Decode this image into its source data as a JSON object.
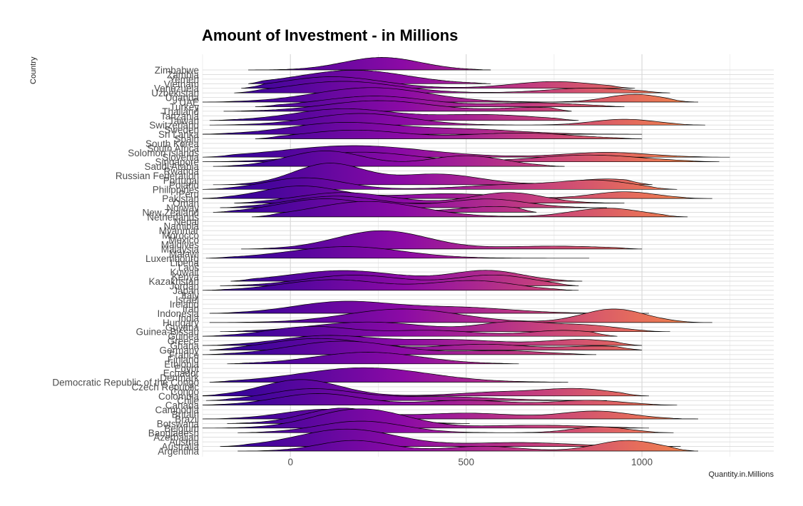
{
  "chart_data": {
    "type": "ridgeline",
    "title": "Amount of Investment - in Millions",
    "xlabel": "Quantity.in.Millions",
    "ylabel": "Country",
    "xlim": [
      -250,
      1375
    ],
    "x_ticks": [
      0,
      500,
      1000
    ],
    "grid": true,
    "gradient_colors": [
      "#3a049a",
      "#8b0aa5",
      "#c43e7f",
      "#e76f5a",
      "#fca636"
    ],
    "categories": [
      "Argentina",
      "Australia",
      "Austria",
      "Azerbaijan",
      "Bangladesh",
      "Belgium",
      "Botswana",
      "Brazil",
      "Britain",
      "Cambodia",
      "Canada",
      "Chile",
      "Colombia",
      "Congo",
      "Czech Republic",
      "Democratic Republic of the Congo",
      "Denmark",
      "Ecuador",
      "Egypt",
      "Ethiopia",
      "Finland",
      "France",
      "Germany",
      "Ghana",
      "Greece",
      "Guinea",
      "Guinea-Bissau",
      "Guyana",
      "Hungary",
      "India",
      "Indonesia",
      "Iran",
      "Ireland",
      "Israel",
      "Italy",
      "Japan",
      "Jordan",
      "Kazakhstan",
      "Kenya",
      "Kuwait",
      "Laos",
      "Liberia",
      "Luxembourg",
      "Malawi",
      "Malaysia",
      "Maldives",
      "Mexico",
      "Morocco",
      "Myanmar",
      "Namibia",
      "Nepal",
      "Netherlands",
      "New Zealand",
      "Norway",
      "Oman",
      "Pakistan",
      "Peru",
      "Philippines",
      "Poland",
      "Portugal",
      "Russian Federation",
      "Rwanda",
      "Saudi Arabia",
      "Singapore",
      "Slovenia",
      "Solomon Islands",
      "South Africa",
      "South Korea",
      "Spain",
      "Sri Lanka",
      "Sweden",
      "Switzerland",
      "Taiwan",
      "Tanzania",
      "Thailand",
      "Turkey",
      "UAE",
      "Uganda",
      "Uzbekistan",
      "Venezuela",
      "Vietnam",
      "Yemen",
      "Zambia",
      "Zimbabwe"
    ],
    "series": [
      {
        "name": "Argentina",
        "range": [
          -150,
          1160
        ],
        "peaks": [
          [
            180,
            0.55,
            100
          ],
          [
            550,
            0.25,
            100
          ],
          [
            960,
            0.55,
            90
          ]
        ]
      },
      {
        "name": "Australia",
        "range": [
          -200,
          1110
        ],
        "peaks": [
          [
            160,
            0.9,
            140
          ],
          [
            650,
            0.2,
            150
          ]
        ]
      },
      {
        "name": "Bangladesh",
        "range": [
          -150,
          1090
        ],
        "peaks": [
          [
            200,
            0.6,
            120
          ],
          [
            880,
            0.3,
            80
          ]
        ]
      },
      {
        "name": "Belgium",
        "range": [
          -250,
          1020
        ],
        "peaks": [
          [
            200,
            1.0,
            130
          ],
          [
            700,
            0.15,
            150
          ]
        ]
      },
      {
        "name": "Botswana",
        "range": [
          -180,
          510
        ],
        "peaks": [
          [
            150,
            0.8,
            110
          ]
        ]
      },
      {
        "name": "Brazil",
        "range": [
          -250,
          1160
        ],
        "peaks": [
          [
            100,
            0.5,
            120
          ],
          [
            500,
            0.3,
            140
          ],
          [
            870,
            0.4,
            100
          ]
        ]
      },
      {
        "name": "Canada",
        "range": [
          -280,
          1100
        ],
        "peaks": [
          [
            80,
            0.6,
            120
          ],
          [
            500,
            0.25,
            120
          ],
          [
            850,
            0.25,
            100
          ]
        ]
      },
      {
        "name": "Chile",
        "range": [
          -240,
          900
        ],
        "peaks": [
          [
            60,
            0.6,
            120
          ],
          [
            420,
            0.2,
            160
          ]
        ]
      },
      {
        "name": "Colombia",
        "range": [
          -280,
          1020
        ],
        "peaks": [
          [
            30,
            0.85,
            110
          ],
          [
            600,
            0.2,
            120
          ],
          [
            820,
            0.35,
            100
          ]
        ]
      },
      {
        "name": "Democratic Republic of the Congo",
        "range": [
          -230,
          790
        ],
        "peaks": [
          [
            210,
            0.75,
            180
          ]
        ]
      },
      {
        "name": "Ethiopia",
        "range": [
          -180,
          650
        ],
        "peaks": [
          [
            220,
            0.6,
            150
          ]
        ]
      },
      {
        "name": "France",
        "range": [
          -250,
          870
        ],
        "peaks": [
          [
            150,
            0.7,
            150
          ],
          [
            600,
            0.2,
            120
          ]
        ]
      },
      {
        "name": "Germany",
        "range": [
          -230,
          1000
        ],
        "peaks": [
          [
            80,
            0.6,
            140
          ],
          [
            550,
            0.3,
            120
          ],
          [
            880,
            0.2,
            100
          ]
        ]
      },
      {
        "name": "Ghana",
        "range": [
          -250,
          1000
        ],
        "peaks": [
          [
            100,
            0.5,
            130
          ],
          [
            450,
            0.3,
            150
          ],
          [
            830,
            0.3,
            100
          ]
        ]
      },
      {
        "name": "Guinea",
        "range": [
          -260,
          930
        ],
        "peaks": [
          [
            60,
            0.5,
            120
          ],
          [
            400,
            0.3,
            130
          ],
          [
            780,
            0.3,
            100
          ]
        ]
      },
      {
        "name": "Guinea-Bissau",
        "range": [
          -200,
          1080
        ],
        "peaks": [
          [
            220,
            0.5,
            160
          ],
          [
            640,
            0.5,
            100
          ],
          [
            850,
            0.3,
            90
          ]
        ]
      },
      {
        "name": "Hungary",
        "range": [
          -230,
          1200
        ],
        "peaks": [
          [
            320,
            0.7,
            160
          ],
          [
            920,
            0.7,
            90
          ]
        ]
      },
      {
        "name": "Indonesia",
        "range": [
          -230,
          1020
        ],
        "peaks": [
          [
            150,
            0.6,
            140
          ],
          [
            480,
            0.3,
            150
          ]
        ]
      },
      {
        "name": "Japan",
        "range": [
          -250,
          820
        ],
        "peaks": [
          [
            120,
            0.55,
            140
          ],
          [
            520,
            0.5,
            120
          ]
        ]
      },
      {
        "name": "Jordan",
        "range": [
          -200,
          820
        ],
        "peaks": [
          [
            180,
            0.55,
            140
          ],
          [
            580,
            0.55,
            110
          ]
        ]
      },
      {
        "name": "Kazakhstan",
        "range": [
          -170,
          830
        ],
        "peaks": [
          [
            150,
            0.55,
            150
          ],
          [
            560,
            0.55,
            100
          ]
        ]
      },
      {
        "name": "Luxembourg",
        "range": [
          -240,
          850
        ],
        "peaks": [
          [
            160,
            0.6,
            160
          ]
        ]
      },
      {
        "name": "Malaysia",
        "range": [
          -140,
          1000
        ],
        "peaks": [
          [
            260,
            0.95,
            130
          ],
          [
            750,
            0.15,
            150
          ]
        ]
      },
      {
        "name": "Netherlands",
        "range": [
          -110,
          1130
        ],
        "peaks": [
          [
            220,
            0.8,
            150
          ],
          [
            900,
            0.45,
            100
          ]
        ]
      },
      {
        "name": "New Zealand",
        "range": [
          -220,
          700
        ],
        "peaks": [
          [
            100,
            0.7,
            130
          ],
          [
            580,
            0.3,
            100
          ]
        ]
      },
      {
        "name": "Norway",
        "range": [
          -200,
          900
        ],
        "peaks": [
          [
            130,
            0.6,
            130
          ],
          [
            560,
            0.45,
            110
          ]
        ]
      },
      {
        "name": "Oman",
        "range": [
          -160,
          950
        ],
        "peaks": [
          [
            150,
            0.55,
            130
          ],
          [
            620,
            0.55,
            100
          ]
        ]
      },
      {
        "name": "Pakistan",
        "range": [
          -270,
          1200
        ],
        "peaks": [
          [
            30,
            0.65,
            110
          ],
          [
            450,
            0.25,
            140
          ],
          [
            950,
            0.35,
            90
          ]
        ]
      },
      {
        "name": "Philippines",
        "range": [
          -250,
          1100
        ],
        "peaks": [
          [
            40,
            0.6,
            110
          ],
          [
            650,
            0.25,
            150
          ],
          [
            880,
            0.4,
            100
          ]
        ]
      },
      {
        "name": "Poland",
        "range": [
          -220,
          1030
        ],
        "peaks": [
          [
            110,
            1.1,
            100
          ],
          [
            420,
            0.55,
            120
          ],
          [
            900,
            0.3,
            100
          ]
        ]
      },
      {
        "name": "Saudi Arabia",
        "range": [
          -220,
          780
        ],
        "peaks": [
          [
            100,
            0.8,
            110
          ],
          [
            500,
            0.55,
            110
          ]
        ]
      },
      {
        "name": "Singapore",
        "range": [
          -250,
          1220
        ],
        "peaks": [
          [
            200,
            0.5,
            150
          ],
          [
            850,
            0.35,
            150
          ]
        ]
      },
      {
        "name": "Slovenia",
        "range": [
          -250,
          1250
        ],
        "peaks": [
          [
            180,
            0.6,
            200
          ],
          [
            900,
            0.25,
            120
          ]
        ]
      },
      {
        "name": "Spain",
        "range": [
          -100,
          1000
        ],
        "peaks": [
          [
            180,
            0.45,
            140
          ],
          [
            650,
            0.3,
            150
          ]
        ]
      },
      {
        "name": "Sri Lanka",
        "range": [
          -260,
          1000
        ],
        "peaks": [
          [
            150,
            0.6,
            150
          ],
          [
            500,
            0.25,
            150
          ]
        ]
      },
      {
        "name": "Switzerland",
        "range": [
          -230,
          1180
        ],
        "peaks": [
          [
            200,
            0.6,
            140
          ],
          [
            950,
            0.3,
            90
          ]
        ]
      },
      {
        "name": "Taiwan",
        "range": [
          -230,
          820
        ],
        "peaks": [
          [
            150,
            0.6,
            140
          ],
          [
            550,
            0.3,
            150
          ]
        ]
      },
      {
        "name": "Thailand",
        "range": [
          -190,
          800
        ],
        "peaks": [
          [
            250,
            0.55,
            150
          ],
          [
            700,
            0.2,
            100
          ]
        ]
      },
      {
        "name": "Turkey",
        "range": [
          -100,
          950
        ],
        "peaks": [
          [
            240,
            0.55,
            150
          ],
          [
            700,
            0.2,
            120
          ]
        ]
      },
      {
        "name": "UAE",
        "range": [
          -250,
          1160
        ],
        "peaks": [
          [
            230,
            0.75,
            160
          ],
          [
            980,
            0.4,
            80
          ]
        ]
      },
      {
        "name": "Uzbekistan",
        "range": [
          -160,
          1080
        ],
        "peaks": [
          [
            150,
            0.6,
            150
          ],
          [
            850,
            0.25,
            120
          ]
        ]
      },
      {
        "name": "Venezuela",
        "range": [
          -140,
          980
        ],
        "peaks": [
          [
            120,
            0.6,
            140
          ],
          [
            750,
            0.35,
            120
          ]
        ]
      },
      {
        "name": "Vietnam",
        "range": [
          -120,
          570
        ],
        "peaks": [
          [
            180,
            0.7,
            150
          ]
        ]
      },
      {
        "name": "Zimbabwe",
        "range": [
          -120,
          570
        ],
        "peaks": [
          [
            260,
            0.65,
            110
          ]
        ]
      }
    ]
  }
}
